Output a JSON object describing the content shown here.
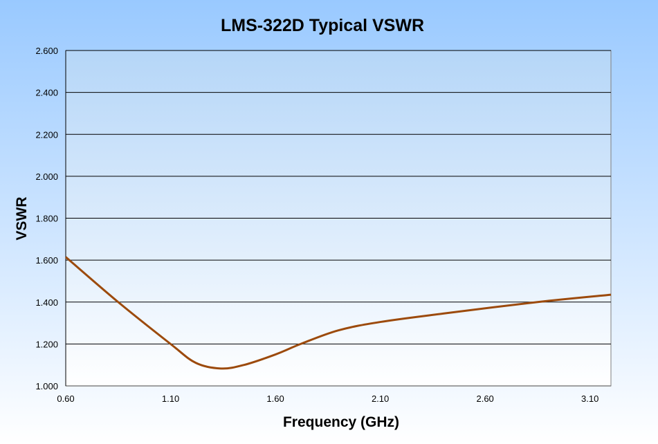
{
  "chart_data": {
    "type": "line",
    "title": "LMS-322D Typical VSWR",
    "xlabel": "Frequency (GHz)",
    "ylabel": "VSWR",
    "xlim": [
      0.6,
      3.2
    ],
    "ylim": [
      1.0,
      2.6
    ],
    "x_ticks": [
      "0.60",
      "1.10",
      "1.60",
      "2.10",
      "2.60",
      "3.10"
    ],
    "y_ticks": [
      "1.000",
      "1.200",
      "1.400",
      "1.600",
      "1.800",
      "2.000",
      "2.200",
      "2.400",
      "2.600"
    ],
    "grid": "horizontal",
    "legend": "none",
    "series": [
      {
        "name": "VSWR",
        "color": "#9c4a0c",
        "x": [
          0.6,
          0.85,
          1.1,
          1.22,
          1.34,
          1.45,
          1.6,
          1.72,
          1.9,
          2.1,
          2.4,
          2.85,
          3.2
        ],
        "y": [
          1.615,
          1.4,
          1.2,
          1.11,
          1.083,
          1.1,
          1.15,
          1.2,
          1.265,
          1.305,
          1.345,
          1.4,
          1.435
        ]
      }
    ]
  }
}
